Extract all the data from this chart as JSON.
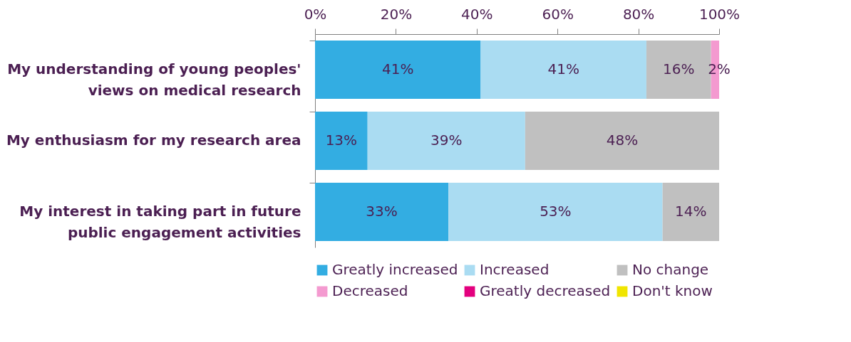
{
  "chart_data": {
    "type": "bar",
    "orientation": "horizontal",
    "stacked": true,
    "categories": [
      "My understanding of young peoples' views on medical research",
      "My enthusiasm for my research area",
      "My interest in taking part in future public engagement activities"
    ],
    "series": [
      {
        "name": "Greatly increased",
        "color": "#33ade2",
        "values": [
          41,
          13,
          33
        ],
        "value_labels": [
          "41%",
          "13%",
          "33%"
        ]
      },
      {
        "name": "Increased",
        "color": "#aadcf2",
        "values": [
          41,
          39,
          53
        ],
        "value_labels": [
          "41%",
          "39%",
          "53%"
        ]
      },
      {
        "name": "No change",
        "color": "#c0c0c0",
        "values": [
          16,
          48,
          14
        ],
        "value_labels": [
          "16%",
          "48%",
          "14%"
        ]
      },
      {
        "name": "Decreased",
        "color": "#f49ad0",
        "values": [
          2,
          null,
          null
        ],
        "value_labels": [
          "2%",
          null,
          null
        ]
      },
      {
        "name": "Greatly decreased",
        "color": "#e3007e",
        "values": [
          null,
          null,
          null
        ]
      },
      {
        "name": "Don't know",
        "color": "#f0e500",
        "values": [
          null,
          null,
          null
        ]
      }
    ],
    "xlim": [
      0,
      100
    ],
    "xticks": [
      {
        "value": 0,
        "label": "0%"
      },
      {
        "value": 20,
        "label": "20%"
      },
      {
        "value": 40,
        "label": "40%"
      },
      {
        "value": 60,
        "label": "60%"
      },
      {
        "value": 80,
        "label": "80%"
      },
      {
        "value": 100,
        "label": "100%"
      }
    ],
    "grid": false,
    "legend": "bottom"
  }
}
